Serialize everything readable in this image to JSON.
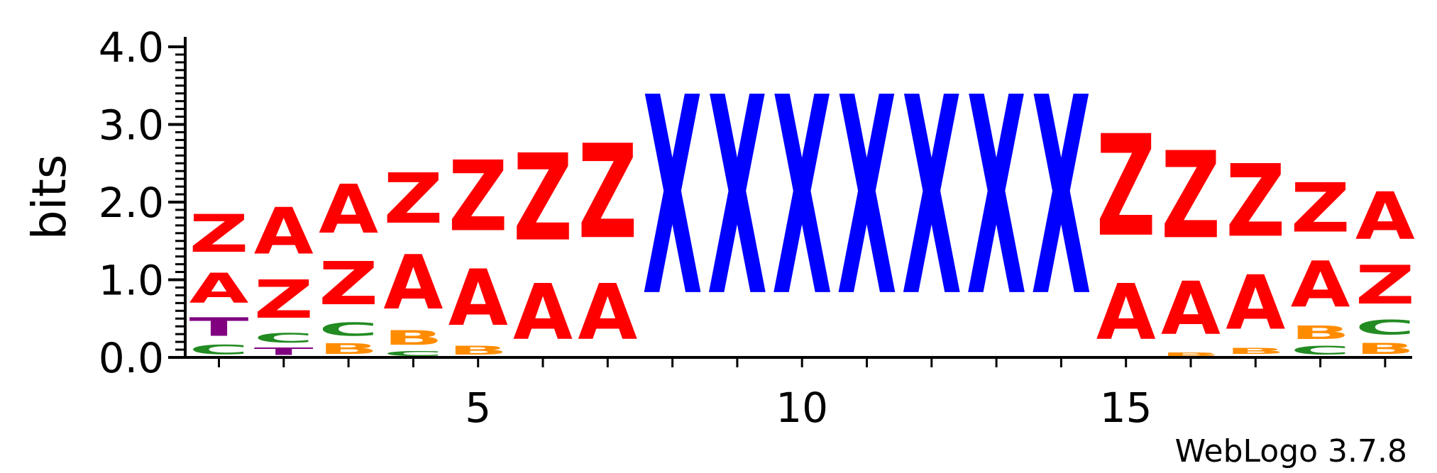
{
  "chart_data": {
    "type": "sequence-logo",
    "ylabel": "bits",
    "ylim": [
      0,
      4.0
    ],
    "ytick_labels": [
      "0.0",
      "1.0",
      "2.0",
      "3.0",
      "4.0"
    ],
    "ytick_values": [
      0,
      1,
      2,
      3,
      4
    ],
    "xtick_labels": [
      "5",
      "10",
      "15"
    ],
    "xtick_values": [
      5,
      10,
      15
    ],
    "credit": "WebLogo 3.7.8",
    "colors": {
      "A": "#ff0000",
      "Z": "#ff0000",
      "X": "#0000ff",
      "C": "#228b22",
      "B": "#ff8c00",
      "T": "#800080"
    },
    "positions": [
      {
        "pos": 1,
        "stack": [
          [
            "C",
            0.2
          ],
          [
            "T",
            0.38
          ],
          [
            "A",
            0.62
          ],
          [
            "Z",
            0.78
          ]
        ]
      },
      {
        "pos": 2,
        "stack": [
          [
            "T",
            0.15
          ],
          [
            "C",
            0.2
          ],
          [
            "Z",
            0.79
          ],
          [
            "A",
            0.96
          ]
        ]
      },
      {
        "pos": 3,
        "stack": [
          [
            "B",
            0.22
          ],
          [
            "C",
            0.28
          ],
          [
            "Z",
            0.9
          ],
          [
            "A",
            1.01
          ]
        ]
      },
      {
        "pos": 4,
        "stack": [
          [
            "C",
            0.1
          ],
          [
            "B",
            0.3
          ],
          [
            "A",
            1.12
          ],
          [
            "Z",
            1.04
          ]
        ]
      },
      {
        "pos": 5,
        "stack": [
          [
            "B",
            0.18
          ],
          [
            "A",
            1.16
          ],
          [
            "Z",
            1.46
          ]
        ]
      },
      {
        "pos": 6,
        "stack": [
          [
            "A",
            1.15
          ],
          [
            "Z",
            1.8
          ]
        ]
      },
      {
        "pos": 7,
        "stack": [
          [
            "A",
            1.15
          ],
          [
            "Z",
            1.95
          ]
        ]
      },
      {
        "pos": 8,
        "stack": [
          [
            "X",
            4.1
          ]
        ]
      },
      {
        "pos": 9,
        "stack": [
          [
            "X",
            4.1
          ]
        ]
      },
      {
        "pos": 10,
        "stack": [
          [
            "X",
            4.1
          ]
        ]
      },
      {
        "pos": 11,
        "stack": [
          [
            "X",
            4.1
          ]
        ]
      },
      {
        "pos": 12,
        "stack": [
          [
            "X",
            4.1
          ]
        ]
      },
      {
        "pos": 13,
        "stack": [
          [
            "X",
            4.1
          ]
        ]
      },
      {
        "pos": 14,
        "stack": [
          [
            "X",
            4.1
          ]
        ]
      },
      {
        "pos": 15,
        "stack": [
          [
            "A",
            1.15
          ],
          [
            "Z",
            2.1
          ]
        ]
      },
      {
        "pos": 16,
        "stack": [
          [
            "B",
            0.08
          ],
          [
            "A",
            1.1
          ],
          [
            "Z",
            1.8
          ]
        ]
      },
      {
        "pos": 17,
        "stack": [
          [
            "C",
            0.02
          ],
          [
            "B",
            0.12
          ],
          [
            "A",
            1.12
          ],
          [
            "Z",
            1.5
          ]
        ]
      },
      {
        "pos": 18,
        "stack": [
          [
            "C",
            0.18
          ],
          [
            "B",
            0.28
          ],
          [
            "A",
            0.95
          ],
          [
            "Z",
            1.02
          ]
        ]
      },
      {
        "pos": 19,
        "stack": [
          [
            "B",
            0.23
          ],
          [
            "C",
            0.3
          ],
          [
            "Z",
            0.8
          ],
          [
            "A",
            0.98
          ]
        ]
      }
    ]
  }
}
